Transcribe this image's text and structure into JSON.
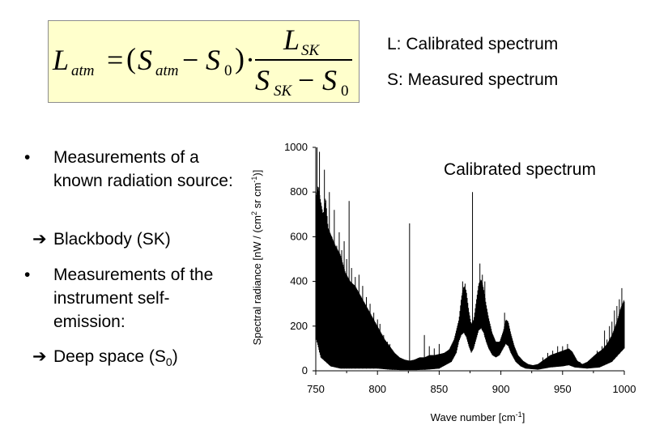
{
  "formula": {
    "lhs_main": "L",
    "lhs_sub": "atm",
    "equals": "=",
    "paren_open": "(",
    "s1_main": "S",
    "s1_sub": "atm",
    "minus1": "−",
    "s0_main": "S",
    "s0_sub": "0",
    "paren_close": ")",
    "dot": "·",
    "num_main": "L",
    "num_sub": "SK",
    "den1_main": "S",
    "den1_sub": "SK",
    "minus2": "−",
    "den2_main": "S",
    "den2_sub": "0"
  },
  "legend": {
    "line1": "L: Calibrated spectrum",
    "line2": "S: Measured spectrum"
  },
  "bullets": {
    "item1": "Measurements of a known radiation source:",
    "arrow1": "Blackbody (SK)",
    "item2": "Measurements of the instrument self-emission:",
    "arrow2_text": "Deep space (S",
    "arrow2_sub": "0",
    "arrow2_close": ")",
    "bullet_char": "•",
    "arrow_char": "➔"
  },
  "chart_data": {
    "type": "line",
    "title": "Calibrated spectrum",
    "xlabel_main": "Wave number [cm",
    "xlabel_sup": "-1",
    "xlabel_close": "]",
    "ylabel_main": "Spectral radiance [nW / (cm",
    "ylabel_sup1": "2",
    "ylabel_mid": " sr cm",
    "ylabel_sup2": "-1",
    "ylabel_close": ")]",
    "xlim": [
      750,
      1000
    ],
    "ylim": [
      0,
      1000
    ],
    "x_ticks": [
      750,
      800,
      850,
      900,
      950,
      1000
    ],
    "y_ticks": [
      0,
      200,
      400,
      600,
      800,
      1000
    ],
    "series": [
      {
        "envelope_upper": [
          [
            750,
            780
          ],
          [
            752,
            830
          ],
          [
            754,
            760
          ],
          [
            756,
            700
          ],
          [
            758,
            780
          ],
          [
            760,
            640
          ],
          [
            763,
            600
          ],
          [
            766,
            560
          ],
          [
            770,
            520
          ],
          [
            774,
            440
          ],
          [
            778,
            400
          ],
          [
            782,
            380
          ],
          [
            786,
            340
          ],
          [
            790,
            300
          ],
          [
            794,
            260
          ],
          [
            798,
            220
          ],
          [
            802,
            180
          ],
          [
            806,
            140
          ],
          [
            810,
            110
          ],
          [
            814,
            80
          ],
          [
            818,
            60
          ],
          [
            822,
            50
          ],
          [
            826,
            45
          ],
          [
            830,
            50
          ],
          [
            834,
            60
          ],
          [
            838,
            60
          ],
          [
            842,
            70
          ],
          [
            846,
            70
          ],
          [
            850,
            75
          ],
          [
            854,
            80
          ],
          [
            858,
            95
          ],
          [
            862,
            140
          ],
          [
            866,
            230
          ],
          [
            868,
            330
          ],
          [
            870,
            380
          ],
          [
            872,
            360
          ],
          [
            874,
            270
          ],
          [
            876,
            210
          ],
          [
            878,
            230
          ],
          [
            880,
            310
          ],
          [
            882,
            390
          ],
          [
            884,
            410
          ],
          [
            886,
            370
          ],
          [
            888,
            300
          ],
          [
            890,
            240
          ],
          [
            893,
            170
          ],
          [
            896,
            130
          ],
          [
            899,
            130
          ],
          [
            902,
            180
          ],
          [
            904,
            230
          ],
          [
            906,
            220
          ],
          [
            908,
            170
          ],
          [
            911,
            110
          ],
          [
            914,
            70
          ],
          [
            918,
            45
          ],
          [
            922,
            30
          ],
          [
            926,
            25
          ],
          [
            930,
            30
          ],
          [
            935,
            50
          ],
          [
            940,
            70
          ],
          [
            945,
            80
          ],
          [
            950,
            90
          ],
          [
            955,
            100
          ],
          [
            958,
            85
          ],
          [
            962,
            45
          ],
          [
            966,
            30
          ],
          [
            970,
            40
          ],
          [
            974,
            60
          ],
          [
            978,
            80
          ],
          [
            982,
            95
          ],
          [
            986,
            120
          ],
          [
            990,
            160
          ],
          [
            994,
            220
          ],
          [
            997,
            280
          ],
          [
            1000,
            320
          ]
        ],
        "envelope_lower": [
          [
            750,
            150
          ],
          [
            754,
            60
          ],
          [
            758,
            40
          ],
          [
            762,
            20
          ],
          [
            770,
            10
          ],
          [
            780,
            10
          ],
          [
            790,
            10
          ],
          [
            800,
            10
          ],
          [
            810,
            5
          ],
          [
            820,
            3
          ],
          [
            830,
            3
          ],
          [
            840,
            5
          ],
          [
            850,
            10
          ],
          [
            860,
            40
          ],
          [
            864,
            80
          ],
          [
            866,
            130
          ],
          [
            868,
            160
          ],
          [
            870,
            170
          ],
          [
            872,
            150
          ],
          [
            874,
            110
          ],
          [
            876,
            80
          ],
          [
            878,
            100
          ],
          [
            880,
            140
          ],
          [
            882,
            180
          ],
          [
            884,
            190
          ],
          [
            886,
            170
          ],
          [
            888,
            130
          ],
          [
            890,
            100
          ],
          [
            893,
            70
          ],
          [
            896,
            60
          ],
          [
            899,
            70
          ],
          [
            902,
            100
          ],
          [
            904,
            120
          ],
          [
            906,
            110
          ],
          [
            908,
            80
          ],
          [
            912,
            40
          ],
          [
            916,
            20
          ],
          [
            920,
            10
          ],
          [
            930,
            5
          ],
          [
            940,
            15
          ],
          [
            950,
            20
          ],
          [
            955,
            25
          ],
          [
            960,
            15
          ],
          [
            970,
            10
          ],
          [
            980,
            15
          ],
          [
            990,
            40
          ],
          [
            995,
            70
          ],
          [
            1000,
            100
          ]
        ],
        "spikes": [
          [
            751,
            1000
          ],
          [
            753,
            980
          ],
          [
            755,
            720
          ],
          [
            757,
            900
          ],
          [
            759,
            640
          ],
          [
            761,
            800
          ],
          [
            763,
            600
          ],
          [
            765,
            720
          ],
          [
            767,
            560
          ],
          [
            769,
            620
          ],
          [
            771,
            540
          ],
          [
            773,
            580
          ],
          [
            775,
            500
          ],
          [
            777,
            760
          ],
          [
            779,
            460
          ],
          [
            782,
            420
          ],
          [
            785,
            430
          ],
          [
            788,
            380
          ],
          [
            791,
            330
          ],
          [
            794,
            300
          ],
          [
            797,
            260
          ],
          [
            800,
            230
          ],
          [
            802,
            210
          ],
          [
            805,
            160
          ],
          [
            808,
            130
          ],
          [
            810,
            120
          ],
          [
            812,
            90
          ],
          [
            826,
            660
          ],
          [
            838,
            160
          ],
          [
            842,
            110
          ],
          [
            846,
            100
          ],
          [
            850,
            120
          ],
          [
            869,
            400
          ],
          [
            871,
            390
          ],
          [
            877,
            800
          ],
          [
            883,
            480
          ],
          [
            885,
            430
          ],
          [
            887,
            400
          ],
          [
            903,
            260
          ],
          [
            934,
            60
          ],
          [
            938,
            80
          ],
          [
            942,
            90
          ],
          [
            946,
            110
          ],
          [
            950,
            110
          ],
          [
            954,
            120
          ],
          [
            964,
            40
          ],
          [
            978,
            90
          ],
          [
            982,
            110
          ],
          [
            984,
            180
          ],
          [
            986,
            140
          ],
          [
            988,
            200
          ],
          [
            990,
            220
          ],
          [
            992,
            270
          ],
          [
            994,
            290
          ],
          [
            996,
            320
          ],
          [
            998,
            370
          ],
          [
            999,
            280
          ],
          [
            1000,
            310
          ]
        ]
      }
    ],
    "grid": false
  }
}
